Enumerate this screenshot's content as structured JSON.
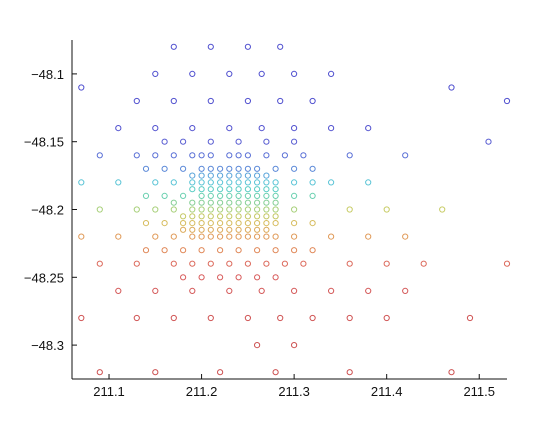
{
  "chart_data": {
    "type": "scatter",
    "title": "",
    "xlabel": "",
    "ylabel": "",
    "xlim": [
      211.06,
      211.53
    ],
    "ylim": [
      -48.325,
      -48.075
    ],
    "grid": false,
    "legend": "none",
    "marker": "open-circle",
    "colormap": "jet",
    "x_ticks": [
      211.1,
      211.2,
      211.3,
      211.4,
      211.5
    ],
    "x_tick_labels": [
      "211.1",
      "211.2",
      "211.3",
      "211.4",
      "211.5"
    ],
    "y_ticks": [
      -48.1,
      -48.15,
      -48.2,
      -48.25,
      -48.3
    ],
    "y_tick_labels": [
      "−48.1",
      "−48.15",
      "−48.2",
      "−48.25",
      "−48.3"
    ],
    "points": [
      [
        211.17,
        -48.08,
        "#5050cf"
      ],
      [
        211.21,
        -48.08,
        "#5050cf"
      ],
      [
        211.25,
        -48.08,
        "#5050cf"
      ],
      [
        211.285,
        -48.08,
        "#5050cf"
      ],
      [
        211.15,
        -48.1,
        "#5050cf"
      ],
      [
        211.19,
        -48.1,
        "#5050cf"
      ],
      [
        211.23,
        -48.1,
        "#5050cf"
      ],
      [
        211.265,
        -48.1,
        "#5050cf"
      ],
      [
        211.3,
        -48.1,
        "#5050cf"
      ],
      [
        211.34,
        -48.1,
        "#5050cf"
      ],
      [
        211.07,
        -48.11,
        "#5050cf"
      ],
      [
        211.47,
        -48.11,
        "#5050cf"
      ],
      [
        211.13,
        -48.12,
        "#5050cf"
      ],
      [
        211.17,
        -48.12,
        "#5050cf"
      ],
      [
        211.21,
        -48.12,
        "#5050cf"
      ],
      [
        211.25,
        -48.12,
        "#5050cf"
      ],
      [
        211.285,
        -48.12,
        "#5050cf"
      ],
      [
        211.32,
        -48.12,
        "#5050cf"
      ],
      [
        211.53,
        -48.12,
        "#5050cf"
      ],
      [
        211.11,
        -48.14,
        "#5050cf"
      ],
      [
        211.15,
        -48.14,
        "#5050cf"
      ],
      [
        211.19,
        -48.14,
        "#5050cf"
      ],
      [
        211.23,
        -48.14,
        "#5050cf"
      ],
      [
        211.265,
        -48.14,
        "#5050cf"
      ],
      [
        211.3,
        -48.14,
        "#5050cf"
      ],
      [
        211.34,
        -48.14,
        "#5050cf"
      ],
      [
        211.38,
        -48.14,
        "#5050cf"
      ],
      [
        211.16,
        -48.15,
        "#5a5ed2"
      ],
      [
        211.18,
        -48.15,
        "#5a5ed2"
      ],
      [
        211.21,
        -48.15,
        "#5a5ed2"
      ],
      [
        211.24,
        -48.15,
        "#5a5ed2"
      ],
      [
        211.27,
        -48.15,
        "#5a5ed2"
      ],
      [
        211.3,
        -48.15,
        "#5a5ed2"
      ],
      [
        211.51,
        -48.15,
        "#5a5ed2"
      ],
      [
        211.09,
        -48.16,
        "#5a70d6"
      ],
      [
        211.13,
        -48.16,
        "#5a70d6"
      ],
      [
        211.15,
        -48.16,
        "#5a70d6"
      ],
      [
        211.17,
        -48.16,
        "#5a70d6"
      ],
      [
        211.19,
        -48.16,
        "#5a70d6"
      ],
      [
        211.2,
        -48.16,
        "#5a70d6"
      ],
      [
        211.21,
        -48.16,
        "#5a70d6"
      ],
      [
        211.23,
        -48.16,
        "#5a70d6"
      ],
      [
        211.24,
        -48.16,
        "#5a70d6"
      ],
      [
        211.25,
        -48.16,
        "#5a70d6"
      ],
      [
        211.27,
        -48.16,
        "#5a70d6"
      ],
      [
        211.29,
        -48.16,
        "#5a70d6"
      ],
      [
        211.31,
        -48.16,
        "#5a70d6"
      ],
      [
        211.36,
        -48.16,
        "#5a70d6"
      ],
      [
        211.42,
        -48.16,
        "#5a70d6"
      ],
      [
        211.14,
        -48.17,
        "#5a88d8"
      ],
      [
        211.16,
        -48.17,
        "#5a88d8"
      ],
      [
        211.18,
        -48.17,
        "#5a88d8"
      ],
      [
        211.2,
        -48.17,
        "#5a88d8"
      ],
      [
        211.21,
        -48.17,
        "#5a88d8"
      ],
      [
        211.22,
        -48.17,
        "#5a88d8"
      ],
      [
        211.23,
        -48.17,
        "#5a88d8"
      ],
      [
        211.24,
        -48.17,
        "#5a88d8"
      ],
      [
        211.25,
        -48.17,
        "#5a88d8"
      ],
      [
        211.26,
        -48.17,
        "#5a88d8"
      ],
      [
        211.28,
        -48.17,
        "#5a88d8"
      ],
      [
        211.3,
        -48.17,
        "#5a88d8"
      ],
      [
        211.32,
        -48.17,
        "#5a88d8"
      ],
      [
        211.19,
        -48.175,
        "#5aa4da"
      ],
      [
        211.2,
        -48.175,
        "#5aa4da"
      ],
      [
        211.21,
        -48.175,
        "#5aa4da"
      ],
      [
        211.22,
        -48.175,
        "#5aa4da"
      ],
      [
        211.23,
        -48.175,
        "#5aa4da"
      ],
      [
        211.24,
        -48.175,
        "#5aa4da"
      ],
      [
        211.25,
        -48.175,
        "#5aa4da"
      ],
      [
        211.26,
        -48.175,
        "#5aa4da"
      ],
      [
        211.27,
        -48.175,
        "#5aa4da"
      ],
      [
        211.07,
        -48.18,
        "#5ac4d6"
      ],
      [
        211.11,
        -48.18,
        "#5ac4d6"
      ],
      [
        211.15,
        -48.18,
        "#5ac4d6"
      ],
      [
        211.17,
        -48.18,
        "#5ac4d6"
      ],
      [
        211.19,
        -48.18,
        "#5ac4d6"
      ],
      [
        211.2,
        -48.18,
        "#5ac4d6"
      ],
      [
        211.21,
        -48.18,
        "#5ac4d6"
      ],
      [
        211.22,
        -48.18,
        "#5ac4d6"
      ],
      [
        211.23,
        -48.18,
        "#5ac4d6"
      ],
      [
        211.24,
        -48.18,
        "#5ac4d6"
      ],
      [
        211.25,
        -48.18,
        "#5ac4d6"
      ],
      [
        211.26,
        -48.18,
        "#5ac4d6"
      ],
      [
        211.27,
        -48.18,
        "#5ac4d6"
      ],
      [
        211.28,
        -48.18,
        "#5ac4d6"
      ],
      [
        211.3,
        -48.18,
        "#5ac4d6"
      ],
      [
        211.32,
        -48.18,
        "#5ac4d6"
      ],
      [
        211.34,
        -48.18,
        "#5ac4d6"
      ],
      [
        211.38,
        -48.18,
        "#5ac4d6"
      ],
      [
        211.19,
        -48.185,
        "#5acdc4"
      ],
      [
        211.2,
        -48.185,
        "#5acdc4"
      ],
      [
        211.21,
        -48.185,
        "#5acdc4"
      ],
      [
        211.22,
        -48.185,
        "#5acdc4"
      ],
      [
        211.23,
        -48.185,
        "#5acdc4"
      ],
      [
        211.24,
        -48.185,
        "#5acdc4"
      ],
      [
        211.25,
        -48.185,
        "#5acdc4"
      ],
      [
        211.26,
        -48.185,
        "#5acdc4"
      ],
      [
        211.27,
        -48.185,
        "#5acdc4"
      ],
      [
        211.28,
        -48.185,
        "#5acdc4"
      ],
      [
        211.14,
        -48.19,
        "#6ad0b0"
      ],
      [
        211.16,
        -48.19,
        "#6ad0b0"
      ],
      [
        211.18,
        -48.19,
        "#6ad0b0"
      ],
      [
        211.2,
        -48.19,
        "#6ad0b0"
      ],
      [
        211.21,
        -48.19,
        "#6ad0b0"
      ],
      [
        211.22,
        -48.19,
        "#6ad0b0"
      ],
      [
        211.23,
        -48.19,
        "#6ad0b0"
      ],
      [
        211.24,
        -48.19,
        "#6ad0b0"
      ],
      [
        211.25,
        -48.19,
        "#6ad0b0"
      ],
      [
        211.26,
        -48.19,
        "#6ad0b0"
      ],
      [
        211.27,
        -48.19,
        "#6ad0b0"
      ],
      [
        211.28,
        -48.19,
        "#6ad0b0"
      ],
      [
        211.3,
        -48.19,
        "#6ad0b0"
      ],
      [
        211.32,
        -48.19,
        "#6ad0b0"
      ],
      [
        211.17,
        -48.195,
        "#86cf96"
      ],
      [
        211.19,
        -48.195,
        "#86cf96"
      ],
      [
        211.2,
        -48.195,
        "#86cf96"
      ],
      [
        211.21,
        -48.195,
        "#86cf96"
      ],
      [
        211.22,
        -48.195,
        "#86cf96"
      ],
      [
        211.23,
        -48.195,
        "#86cf96"
      ],
      [
        211.24,
        -48.195,
        "#86cf96"
      ],
      [
        211.25,
        -48.195,
        "#86cf96"
      ],
      [
        211.26,
        -48.195,
        "#86cf96"
      ],
      [
        211.27,
        -48.195,
        "#86cf96"
      ],
      [
        211.28,
        -48.195,
        "#86cf96"
      ],
      [
        211.09,
        -48.2,
        "#a8d07a"
      ],
      [
        211.13,
        -48.2,
        "#a8d07a"
      ],
      [
        211.15,
        -48.2,
        "#a8d07a"
      ],
      [
        211.17,
        -48.2,
        "#a8d07a"
      ],
      [
        211.19,
        -48.2,
        "#a8d07a"
      ],
      [
        211.2,
        -48.2,
        "#a8d07a"
      ],
      [
        211.21,
        -48.2,
        "#a8d07a"
      ],
      [
        211.22,
        -48.2,
        "#a8d07a"
      ],
      [
        211.23,
        -48.2,
        "#a8d07a"
      ],
      [
        211.24,
        -48.2,
        "#a8d07a"
      ],
      [
        211.25,
        -48.2,
        "#a8d07a"
      ],
      [
        211.26,
        -48.2,
        "#a8d07a"
      ],
      [
        211.27,
        -48.2,
        "#a8d07a"
      ],
      [
        211.28,
        -48.2,
        "#a8d07a"
      ],
      [
        211.3,
        -48.2,
        "#a8d07a"
      ],
      [
        211.36,
        -48.2,
        "#c8cc66"
      ],
      [
        211.4,
        -48.2,
        "#c8cc66"
      ],
      [
        211.46,
        -48.2,
        "#c8cc66"
      ],
      [
        211.18,
        -48.205,
        "#c4c864"
      ],
      [
        211.19,
        -48.205,
        "#c4c864"
      ],
      [
        211.2,
        -48.205,
        "#c4c864"
      ],
      [
        211.21,
        -48.205,
        "#c4c864"
      ],
      [
        211.22,
        -48.205,
        "#c4c864"
      ],
      [
        211.23,
        -48.205,
        "#c4c864"
      ],
      [
        211.24,
        -48.205,
        "#c4c864"
      ],
      [
        211.25,
        -48.205,
        "#c4c864"
      ],
      [
        211.26,
        -48.205,
        "#c4c864"
      ],
      [
        211.27,
        -48.205,
        "#c4c864"
      ],
      [
        211.28,
        -48.205,
        "#c4c864"
      ],
      [
        211.14,
        -48.21,
        "#d6bc5e"
      ],
      [
        211.16,
        -48.21,
        "#d6bc5e"
      ],
      [
        211.18,
        -48.21,
        "#d6bc5e"
      ],
      [
        211.19,
        -48.21,
        "#d6bc5e"
      ],
      [
        211.2,
        -48.21,
        "#d6bc5e"
      ],
      [
        211.21,
        -48.21,
        "#d6bc5e"
      ],
      [
        211.22,
        -48.21,
        "#d6bc5e"
      ],
      [
        211.23,
        -48.21,
        "#d6bc5e"
      ],
      [
        211.24,
        -48.21,
        "#d6bc5e"
      ],
      [
        211.25,
        -48.21,
        "#d6bc5e"
      ],
      [
        211.26,
        -48.21,
        "#d6bc5e"
      ],
      [
        211.27,
        -48.21,
        "#d6bc5e"
      ],
      [
        211.28,
        -48.21,
        "#d6bc5e"
      ],
      [
        211.3,
        -48.21,
        "#d6bc5e"
      ],
      [
        211.32,
        -48.21,
        "#d6bc5e"
      ],
      [
        211.18,
        -48.215,
        "#dcaa5a"
      ],
      [
        211.19,
        -48.215,
        "#dcaa5a"
      ],
      [
        211.2,
        -48.215,
        "#dcaa5a"
      ],
      [
        211.21,
        -48.215,
        "#dcaa5a"
      ],
      [
        211.22,
        -48.215,
        "#dcaa5a"
      ],
      [
        211.23,
        -48.215,
        "#dcaa5a"
      ],
      [
        211.24,
        -48.215,
        "#dcaa5a"
      ],
      [
        211.25,
        -48.215,
        "#dcaa5a"
      ],
      [
        211.26,
        -48.215,
        "#dcaa5a"
      ],
      [
        211.27,
        -48.215,
        "#dcaa5a"
      ],
      [
        211.07,
        -48.22,
        "#e09a58"
      ],
      [
        211.11,
        -48.22,
        "#e09a58"
      ],
      [
        211.15,
        -48.22,
        "#e09a58"
      ],
      [
        211.17,
        -48.22,
        "#e09a58"
      ],
      [
        211.19,
        -48.22,
        "#e09a58"
      ],
      [
        211.2,
        -48.22,
        "#e09a58"
      ],
      [
        211.21,
        -48.22,
        "#e09a58"
      ],
      [
        211.22,
        -48.22,
        "#e09a58"
      ],
      [
        211.23,
        -48.22,
        "#e09a58"
      ],
      [
        211.24,
        -48.22,
        "#e09a58"
      ],
      [
        211.25,
        -48.22,
        "#e09a58"
      ],
      [
        211.26,
        -48.22,
        "#e09a58"
      ],
      [
        211.27,
        -48.22,
        "#e09a58"
      ],
      [
        211.28,
        -48.22,
        "#e09a58"
      ],
      [
        211.3,
        -48.22,
        "#e09a58"
      ],
      [
        211.34,
        -48.22,
        "#e09a58"
      ],
      [
        211.38,
        -48.22,
        "#e09a58"
      ],
      [
        211.42,
        -48.22,
        "#e09a58"
      ],
      [
        211.14,
        -48.23,
        "#e08858"
      ],
      [
        211.16,
        -48.23,
        "#e08858"
      ],
      [
        211.18,
        -48.23,
        "#e08858"
      ],
      [
        211.2,
        -48.23,
        "#e08858"
      ],
      [
        211.22,
        -48.23,
        "#e08858"
      ],
      [
        211.24,
        -48.23,
        "#e08858"
      ],
      [
        211.26,
        -48.23,
        "#e08858"
      ],
      [
        211.28,
        -48.23,
        "#e08858"
      ],
      [
        211.3,
        -48.23,
        "#e08858"
      ],
      [
        211.32,
        -48.23,
        "#e08858"
      ],
      [
        211.09,
        -48.24,
        "#dc6a5c"
      ],
      [
        211.13,
        -48.24,
        "#dc6a5c"
      ],
      [
        211.17,
        -48.24,
        "#dc6a5c"
      ],
      [
        211.19,
        -48.24,
        "#dc6a5c"
      ],
      [
        211.21,
        -48.24,
        "#dc6a5c"
      ],
      [
        211.23,
        -48.24,
        "#dc6a5c"
      ],
      [
        211.25,
        -48.24,
        "#dc6a5c"
      ],
      [
        211.27,
        -48.24,
        "#dc6a5c"
      ],
      [
        211.29,
        -48.24,
        "#dc6a5c"
      ],
      [
        211.31,
        -48.24,
        "#dc6a5c"
      ],
      [
        211.36,
        -48.24,
        "#dc6a5c"
      ],
      [
        211.4,
        -48.24,
        "#dc6a5c"
      ],
      [
        211.44,
        -48.24,
        "#dc6a5c"
      ],
      [
        211.53,
        -48.24,
        "#dc6a5c"
      ],
      [
        211.18,
        -48.25,
        "#d85c5c"
      ],
      [
        211.2,
        -48.25,
        "#d85c5c"
      ],
      [
        211.22,
        -48.25,
        "#d85c5c"
      ],
      [
        211.24,
        -48.25,
        "#d85c5c"
      ],
      [
        211.26,
        -48.25,
        "#d85c5c"
      ],
      [
        211.28,
        -48.25,
        "#d85c5c"
      ],
      [
        211.11,
        -48.26,
        "#d45858"
      ],
      [
        211.15,
        -48.26,
        "#d45858"
      ],
      [
        211.19,
        -48.26,
        "#d45858"
      ],
      [
        211.23,
        -48.26,
        "#d45858"
      ],
      [
        211.265,
        -48.26,
        "#d45858"
      ],
      [
        211.3,
        -48.26,
        "#d45858"
      ],
      [
        211.34,
        -48.26,
        "#d45858"
      ],
      [
        211.38,
        -48.26,
        "#d45858"
      ],
      [
        211.42,
        -48.26,
        "#d45858"
      ],
      [
        211.07,
        -48.28,
        "#d05454"
      ],
      [
        211.13,
        -48.28,
        "#d05454"
      ],
      [
        211.17,
        -48.28,
        "#d05454"
      ],
      [
        211.21,
        -48.28,
        "#d05454"
      ],
      [
        211.25,
        -48.28,
        "#d05454"
      ],
      [
        211.285,
        -48.28,
        "#d05454"
      ],
      [
        211.32,
        -48.28,
        "#d05454"
      ],
      [
        211.36,
        -48.28,
        "#d05454"
      ],
      [
        211.4,
        -48.28,
        "#d05454"
      ],
      [
        211.49,
        -48.28,
        "#d05454"
      ],
      [
        211.26,
        -48.3,
        "#cc5050"
      ],
      [
        211.3,
        -48.3,
        "#cc5050"
      ],
      [
        211.09,
        -48.32,
        "#cc5050"
      ],
      [
        211.15,
        -48.32,
        "#cc5050"
      ],
      [
        211.22,
        -48.32,
        "#cc5050"
      ],
      [
        211.28,
        -48.32,
        "#cc5050"
      ],
      [
        211.36,
        -48.32,
        "#cc5050"
      ],
      [
        211.47,
        -48.32,
        "#cc5050"
      ]
    ]
  }
}
